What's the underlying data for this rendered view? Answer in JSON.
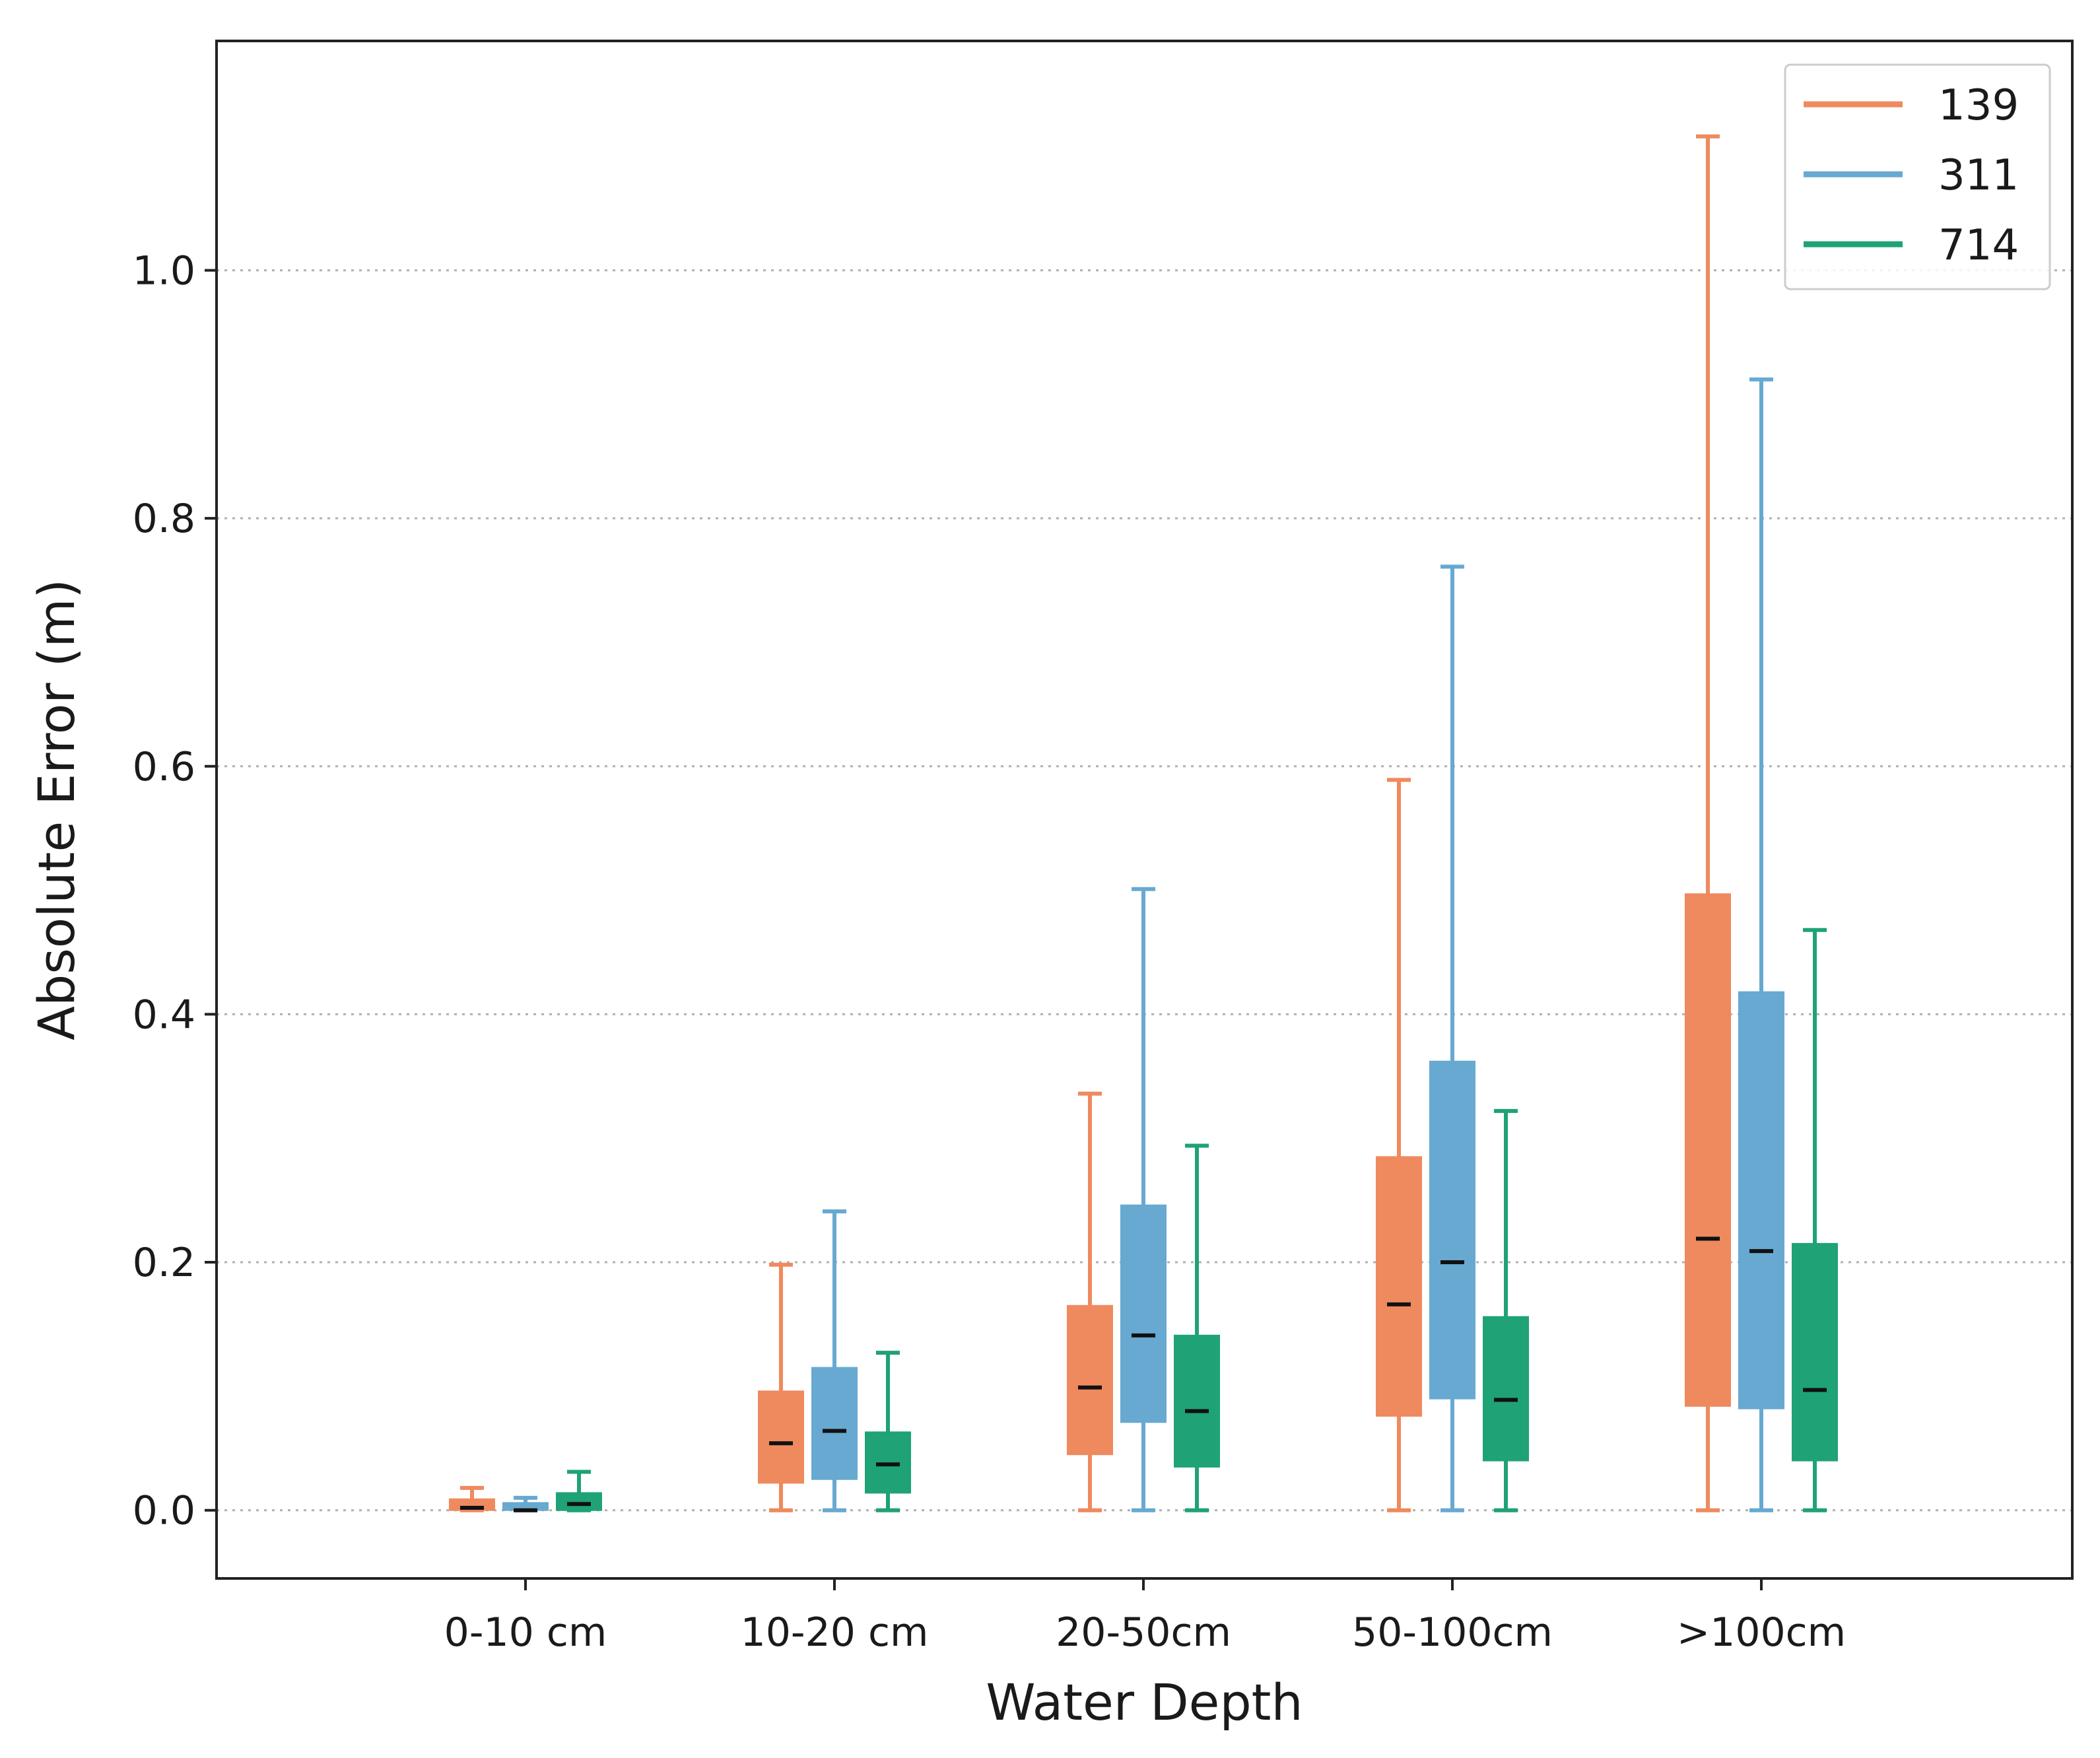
{
  "chart_data": {
    "type": "boxplot",
    "title": "",
    "xlabel": "Water Depth",
    "ylabel": "Absolute Error (m)",
    "ylim": [
      -0.055,
      1.185
    ],
    "yticks": [
      0.0,
      0.2,
      0.4,
      0.6,
      0.8,
      1.0
    ],
    "ytick_labels": [
      "0.0",
      "0.2",
      "0.4",
      "0.6",
      "0.8",
      "1.0"
    ],
    "grid": "y-dotted",
    "legend_position": "top-right",
    "categories": [
      "0-10 cm",
      "10-20 cm",
      "20-50cm",
      "50-100cm",
      ">100cm"
    ],
    "series": [
      {
        "name": "139",
        "color": "#ef8a5e",
        "boxes": [
          {
            "min": 0.0,
            "q1": 0.0,
            "median": 0.002,
            "q3": 0.009,
            "max": 0.018
          },
          {
            "min": 0.0,
            "q1": 0.022,
            "median": 0.054,
            "q3": 0.096,
            "max": 0.198
          },
          {
            "min": 0.0,
            "q1": 0.045,
            "median": 0.099,
            "q3": 0.165,
            "max": 0.336
          },
          {
            "min": 0.0,
            "q1": 0.076,
            "median": 0.166,
            "q3": 0.285,
            "max": 0.589
          },
          {
            "min": 0.0,
            "q1": 0.084,
            "median": 0.219,
            "q3": 0.497,
            "max": 1.108
          }
        ]
      },
      {
        "name": "311",
        "color": "#67a9d1",
        "boxes": [
          {
            "min": 0.0,
            "q1": 0.0,
            "median": 0.0,
            "q3": 0.006,
            "max": 0.01
          },
          {
            "min": 0.0,
            "q1": 0.025,
            "median": 0.064,
            "q3": 0.115,
            "max": 0.241
          },
          {
            "min": 0.0,
            "q1": 0.071,
            "median": 0.141,
            "q3": 0.246,
            "max": 0.501
          },
          {
            "min": 0.0,
            "q1": 0.09,
            "median": 0.2,
            "q3": 0.362,
            "max": 0.761
          },
          {
            "min": 0.0,
            "q1": 0.082,
            "median": 0.209,
            "q3": 0.418,
            "max": 0.912
          }
        ]
      },
      {
        "name": "714",
        "color": "#1fa276",
        "boxes": [
          {
            "min": 0.0,
            "q1": 0.0,
            "median": 0.005,
            "q3": 0.014,
            "max": 0.031
          },
          {
            "min": 0.0,
            "q1": 0.014,
            "median": 0.037,
            "q3": 0.063,
            "max": 0.127
          },
          {
            "min": 0.0,
            "q1": 0.035,
            "median": 0.08,
            "q3": 0.141,
            "max": 0.294
          },
          {
            "min": 0.0,
            "q1": 0.04,
            "median": 0.089,
            "q3": 0.156,
            "max": 0.322
          },
          {
            "min": 0.0,
            "q1": 0.04,
            "median": 0.097,
            "q3": 0.215,
            "max": 0.468
          }
        ]
      }
    ]
  }
}
